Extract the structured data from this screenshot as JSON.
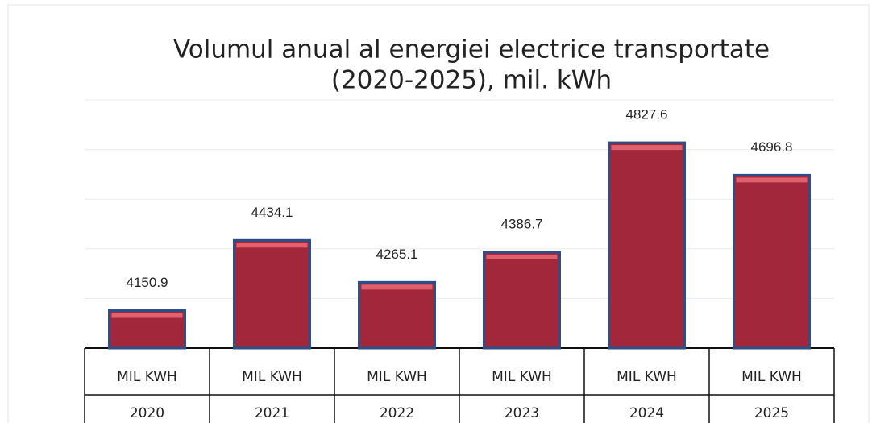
{
  "chart_data": {
    "type": "bar",
    "title": [
      "Volumul anual al energiei electrice transportate",
      "(2020-2025), mil. kWh"
    ],
    "categories": [
      "2020",
      "2021",
      "2022",
      "2023",
      "2024",
      "2025"
    ],
    "series": [
      {
        "name": "MIL KWH",
        "color": "#a3273a",
        "values": [
          4150.9,
          4434.1,
          4265.1,
          4386.7,
          4827.6,
          4696.8
        ]
      }
    ],
    "ylim": [
      4000,
      5000
    ],
    "yticks": [
      4000,
      4200,
      4400,
      4600,
      4800,
      5000
    ],
    "grid": true
  }
}
